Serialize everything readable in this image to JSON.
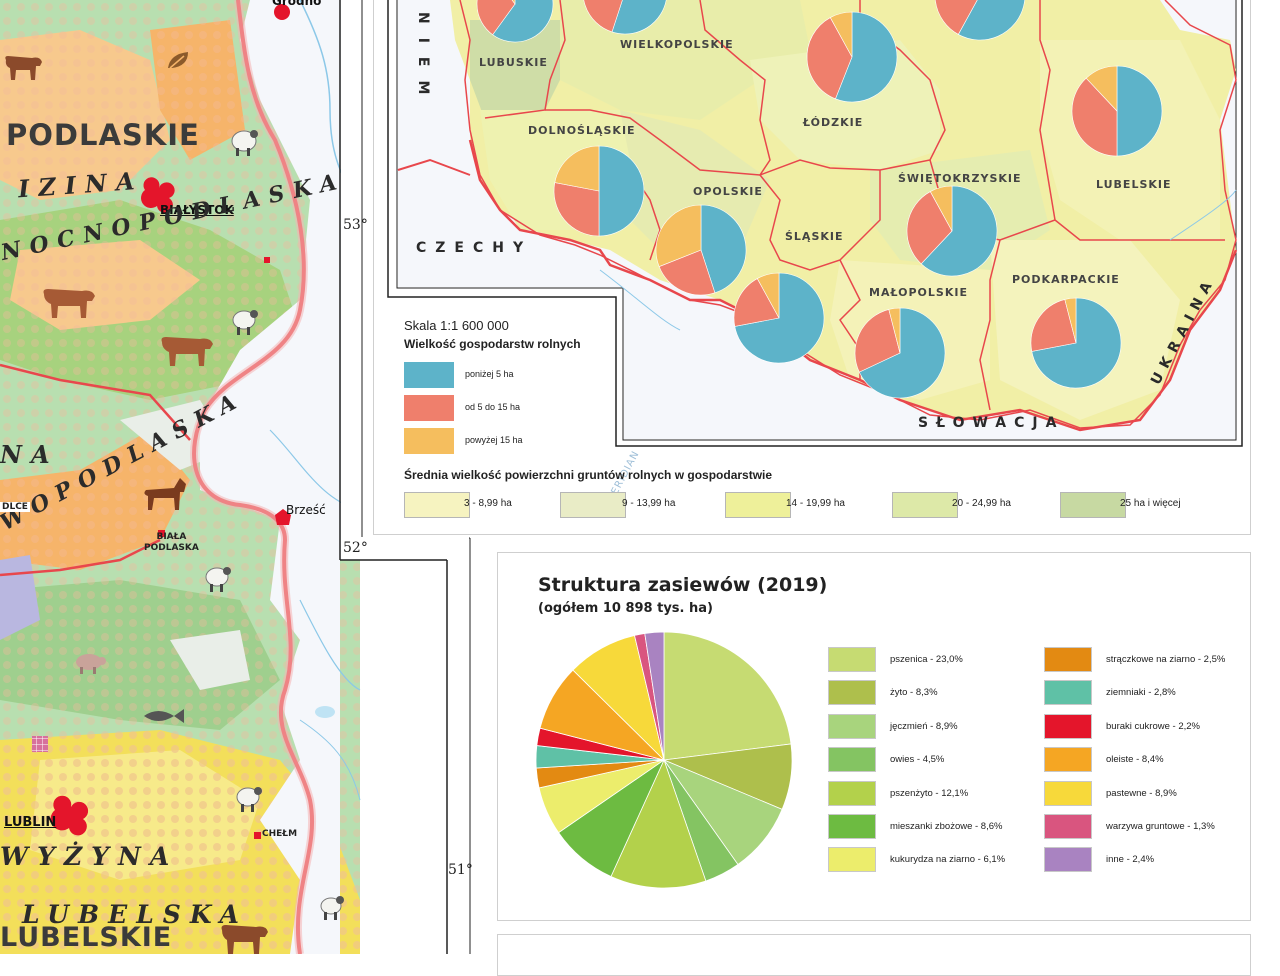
{
  "left_map": {
    "regions": {
      "podlaskie": "PODLASKIE",
      "lubelskie": "LUBELSKIE"
    },
    "landforms": {
      "nizina": "IZINA",
      "polnocnopodlaska": "NOCNOPODLASKA",
      "na": "NA",
      "poludniowopodlaska": "WOPODLASKA",
      "wyzyna": "WYŻYNA",
      "lubelska": "LUBELSKA"
    },
    "cities": {
      "grodno": "Grodno",
      "bialystok": "BIAŁYSTOK",
      "brzesc": "Brześć",
      "biala_podlaska": "BIAŁA\nPODLASKA",
      "siedlce": "DLCE",
      "lublin": "LUBLIN",
      "chelm": "CHEŁM"
    },
    "degrees": {
      "d53": "53°",
      "d52": "52°",
      "d51": "51°"
    }
  },
  "right_map": {
    "countries": {
      "niemcy": "NIEM",
      "czechy": "CZECHY",
      "slowacja": "SŁOWACJA",
      "ukraina": "UKRAINA"
    },
    "voivodeships": [
      {
        "key": "wielkopolskie",
        "label": "WIELKOPOLSKIE"
      },
      {
        "key": "lubuskie",
        "label": "LUBUSKIE"
      },
      {
        "key": "dolnoslaskie",
        "label": "DOLNOŚLĄSKIE"
      },
      {
        "key": "lodzkie",
        "label": "ŁÓDZKIE"
      },
      {
        "key": "lubelskie",
        "label": "LUBELSKIE"
      },
      {
        "key": "swietokrzyskie",
        "label": "ŚWIĘTOKRZYSKIE"
      },
      {
        "key": "opolskie",
        "label": "OPOLSKIE"
      },
      {
        "key": "slaskie",
        "label": "ŚLĄSKIE"
      },
      {
        "key": "malopolskie",
        "label": "MAŁOPOLSKIE"
      },
      {
        "key": "podkarpackie",
        "label": "PODKARPACKIE"
      }
    ],
    "watermark": "MERIDIAN"
  },
  "farm_legend": {
    "scale": "Skala 1:1 600 000",
    "title": "Wielkość  gospodarstw rolnych",
    "items": [
      {
        "label": "poniżej 5 ha",
        "color": "#5db3c9"
      },
      {
        "label": "od 5 do 15 ha",
        "color": "#ef7f6c"
      },
      {
        "label": "powyżej 15 ha",
        "color": "#f5be5e"
      }
    ]
  },
  "area_legend": {
    "title": "Średnia wielkość powierzchni gruntów rolnych w gospodarstwie",
    "items": [
      {
        "label": "3 - 8,99 ha",
        "color": "#f6f3c0"
      },
      {
        "label": "9 - 13,99 ha",
        "color": "#e9ecc6"
      },
      {
        "label": "14 - 19,99 ha",
        "color": "#eef09a"
      },
      {
        "label": "20 - 24,99 ha",
        "color": "#dde9a8"
      },
      {
        "label": "25 ha i więcej",
        "color": "#c7d9a2"
      }
    ]
  },
  "chart_data": {
    "type": "pie",
    "title": "Struktura zasiewów (2019)",
    "subtitle": "(ogółem 10 898 tys. ha)",
    "slices": [
      {
        "label": "pszenica - 23,0%",
        "value": 23.0,
        "color": "#c6db72"
      },
      {
        "label": "żyto - 8,3%",
        "value": 8.3,
        "color": "#aebf4c"
      },
      {
        "label": "jęczmień - 8,9%",
        "value": 8.9,
        "color": "#a8d47d"
      },
      {
        "label": "owies - 4,5%",
        "value": 4.5,
        "color": "#84c462"
      },
      {
        "label": "pszenżyto - 12,1%",
        "value": 12.1,
        "color": "#b3d14b"
      },
      {
        "label": "mieszanki zbożowe - 8,6%",
        "value": 8.6,
        "color": "#6dbb41"
      },
      {
        "label": "kukurydza na ziarno - 6,1%",
        "value": 6.1,
        "color": "#eced6c"
      },
      {
        "label": "strączkowe na ziarno - 2,5%",
        "value": 2.5,
        "color": "#e38a12"
      },
      {
        "label": "ziemniaki - 2,8%",
        "value": 2.8,
        "color": "#5fc1a6"
      },
      {
        "label": "buraki cukrowe - 2,2%",
        "value": 2.2,
        "color": "#e4152b"
      },
      {
        "label": "oleiste - 8,4%",
        "value": 8.4,
        "color": "#f5a623"
      },
      {
        "label": "pastewne - 8,9%",
        "value": 8.9,
        "color": "#f7d93a"
      },
      {
        "label": "warzywa gruntowe - 1,3%",
        "value": 1.3,
        "color": "#d9557f"
      },
      {
        "label": "inne - 2,4%",
        "value": 2.4,
        "color": "#a983c1"
      }
    ],
    "pie_order": [
      0,
      1,
      2,
      3,
      4,
      5,
      6,
      7,
      8,
      9,
      10,
      11,
      12,
      13
    ]
  },
  "voivodeship_pies": [
    {
      "key": "wielkopolskie-a",
      "values": [
        60,
        30,
        10
      ]
    },
    {
      "key": "wielkopolskie-b",
      "values": [
        55,
        30,
        15
      ]
    },
    {
      "key": "lodzkie",
      "values": [
        56,
        36,
        8
      ]
    },
    {
      "key": "mazowieckie",
      "values": [
        58,
        30,
        12
      ]
    },
    {
      "key": "lubelskie",
      "values": [
        50,
        38,
        12
      ]
    },
    {
      "key": "dolnoslaskie",
      "values": [
        50,
        28,
        22
      ]
    },
    {
      "key": "opolskie",
      "values": [
        45,
        24,
        31
      ]
    },
    {
      "key": "swietokrzyskie",
      "values": [
        62,
        30,
        8
      ]
    },
    {
      "key": "slaskie",
      "values": [
        72,
        20,
        8
      ]
    },
    {
      "key": "malopolskie",
      "values": [
        68,
        28,
        4
      ]
    },
    {
      "key": "podkarpackie",
      "values": [
        72,
        24,
        4
      ]
    }
  ]
}
